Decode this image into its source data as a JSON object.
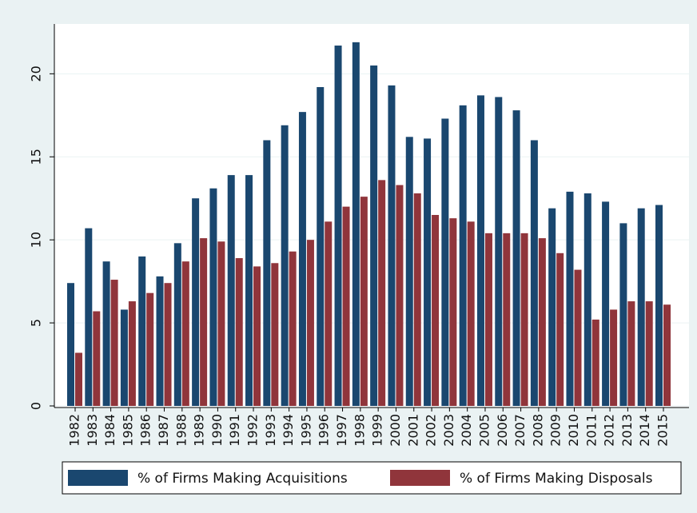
{
  "chart_data": {
    "type": "bar",
    "categories": [
      "1982",
      "1983",
      "1984",
      "1985",
      "1986",
      "1987",
      "1988",
      "1989",
      "1990",
      "1991",
      "1992",
      "1993",
      "1994",
      "1995",
      "1996",
      "1997",
      "1998",
      "1999",
      "2000",
      "2001",
      "2002",
      "2003",
      "2004",
      "2005",
      "2006",
      "2007",
      "2008",
      "2009",
      "2010",
      "2011",
      "2012",
      "2013",
      "2014",
      "2015"
    ],
    "series": [
      {
        "name": "% of Firms Making Acquisitions",
        "color": "#1a476f",
        "values": [
          7.4,
          10.7,
          8.7,
          5.8,
          9.0,
          7.8,
          9.8,
          12.5,
          13.1,
          13.9,
          13.9,
          16.0,
          16.9,
          17.7,
          19.2,
          21.7,
          21.9,
          20.5,
          19.3,
          16.2,
          16.1,
          17.3,
          18.1,
          18.7,
          18.6,
          17.8,
          16.0,
          11.9,
          12.9,
          12.8,
          12.3,
          11.0,
          11.9,
          12.1
        ]
      },
      {
        "name": "% of Firms Making Disposals",
        "color": "#90353b",
        "values": [
          3.2,
          5.7,
          7.6,
          6.3,
          6.8,
          7.4,
          8.7,
          10.1,
          9.9,
          8.9,
          8.4,
          8.6,
          9.3,
          10.0,
          11.1,
          12.0,
          12.6,
          13.6,
          13.3,
          12.8,
          11.5,
          11.3,
          11.1,
          10.4,
          10.4,
          10.4,
          10.1,
          9.2,
          8.2,
          5.2,
          5.8,
          6.3,
          6.3,
          6.1
        ]
      }
    ],
    "ylim": [
      0,
      23
    ],
    "yticks": [
      0,
      5,
      10,
      15,
      20
    ],
    "grid": true,
    "legend": "bottom"
  }
}
